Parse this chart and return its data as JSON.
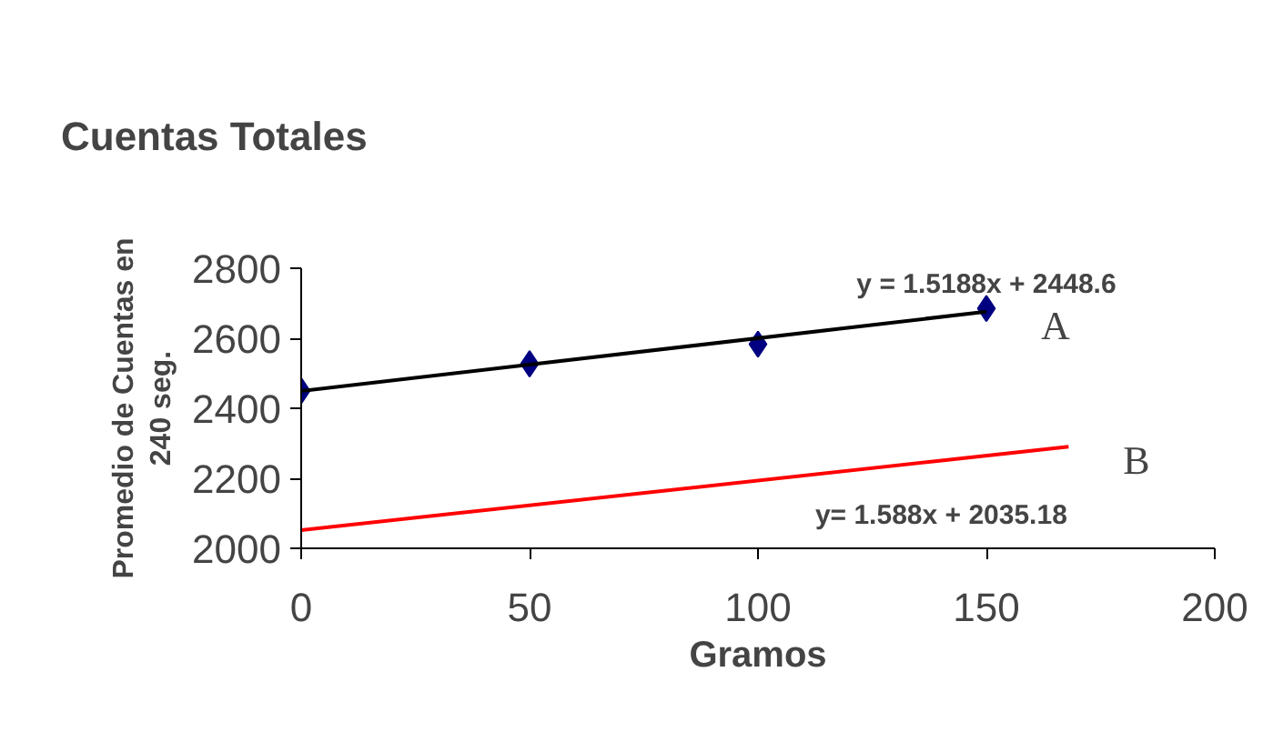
{
  "chart_data": {
    "type": "scatter",
    "title": "Cuentas Totales",
    "xlabel": "Gramos",
    "ylabel": "Promedio de Cuentas en\n240 seg.",
    "xlim": [
      0,
      200
    ],
    "xticks": [
      0,
      50,
      100,
      150,
      200
    ],
    "ylim": [
      2000,
      2800
    ],
    "yticks": [
      2000,
      2200,
      2400,
      2600,
      2800
    ],
    "grid": false,
    "legend": false,
    "series": [
      {
        "marker": "diamond",
        "color": "#000080",
        "x": [
          0,
          50,
          100,
          150
        ],
        "values": [
          2450,
          2527,
          2583,
          2685
        ]
      },
      {
        "type": "line",
        "name": "A",
        "color": "#000000",
        "line_style": "solid",
        "x": [
          0,
          150
        ],
        "values": [
          2449,
          2676
        ]
      },
      {
        "type": "line",
        "name": "B",
        "color": "#ff0000",
        "line_style": "solid",
        "x": [
          0,
          168
        ],
        "values": [
          2052,
          2290
        ]
      }
    ],
    "annotations": [
      "y = 1.5188x + 2448.6",
      "y= 1.588x + 2035.18"
    ]
  }
}
